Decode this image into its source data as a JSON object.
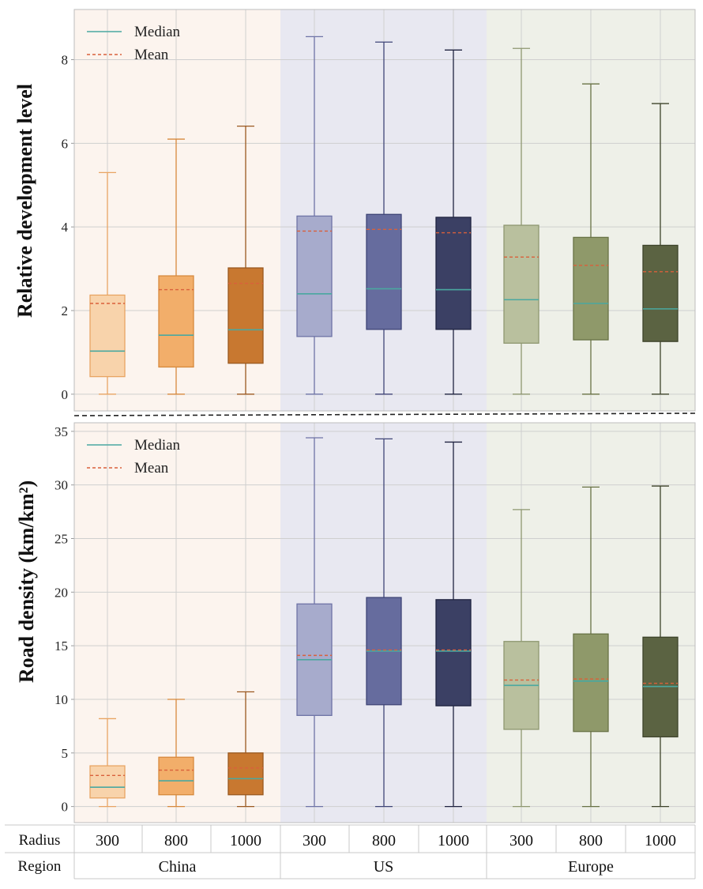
{
  "colors": {
    "median": "#4aa8a0",
    "mean": "#d9603b",
    "bg_china": "#fcf4ee",
    "bg_us": "#e8e8f1",
    "bg_europe": "#eef0e8",
    "grid": "#cfcfcf",
    "divider": "#222222"
  },
  "legend": {
    "median": "Median",
    "mean": "Mean"
  },
  "table": {
    "radius_label": "Radius",
    "region_label": "Region",
    "radii": [
      "300",
      "800",
      "1000",
      "300",
      "800",
      "1000",
      "300",
      "800",
      "1000"
    ],
    "regions": [
      "China",
      "US",
      "Europe"
    ]
  },
  "chart_data": [
    {
      "type": "box",
      "ylabel": "Relative development level",
      "ylim": [
        -0.4,
        9.2
      ],
      "yticks": [
        "0",
        "2",
        "4",
        "6",
        "8"
      ],
      "grid": true,
      "legend_position": "top-left",
      "categories": [
        "China 300",
        "China 800",
        "China 1000",
        "US 300",
        "US 800",
        "US 1000",
        "Europe 300",
        "Europe 800",
        "Europe 1000"
      ],
      "boxes": [
        {
          "min": 0,
          "q1": 0.42,
          "median": 1.03,
          "mean": 2.17,
          "q3": 2.37,
          "max": 5.3,
          "fill": "#f8d3ab",
          "stroke": "#e8a463"
        },
        {
          "min": 0,
          "q1": 0.65,
          "median": 1.41,
          "mean": 2.5,
          "q3": 2.83,
          "max": 6.1,
          "fill": "#f2ae6a",
          "stroke": "#d6893d"
        },
        {
          "min": 0,
          "q1": 0.74,
          "median": 1.54,
          "mean": 2.65,
          "q3": 3.02,
          "max": 6.41,
          "fill": "#c87830",
          "stroke": "#9a5920"
        },
        {
          "min": 0,
          "q1": 1.38,
          "median": 2.4,
          "mean": 3.9,
          "q3": 4.26,
          "max": 8.55,
          "fill": "#a7abcc",
          "stroke": "#6e73a6"
        },
        {
          "min": 0,
          "q1": 1.55,
          "median": 2.52,
          "mean": 3.94,
          "q3": 4.3,
          "max": 8.42,
          "fill": "#666c9e",
          "stroke": "#3f4577"
        },
        {
          "min": 0,
          "q1": 1.55,
          "median": 2.5,
          "mean": 3.86,
          "q3": 4.23,
          "max": 8.23,
          "fill": "#3b4064",
          "stroke": "#1f2340"
        },
        {
          "min": 0,
          "q1": 1.22,
          "median": 2.26,
          "mean": 3.28,
          "q3": 4.04,
          "max": 8.27,
          "fill": "#b9c09e",
          "stroke": "#8e9770"
        },
        {
          "min": 0,
          "q1": 1.3,
          "median": 2.17,
          "mean": 3.08,
          "q3": 3.75,
          "max": 7.42,
          "fill": "#8f996a",
          "stroke": "#687245"
        },
        {
          "min": 0,
          "q1": 1.26,
          "median": 2.04,
          "mean": 2.93,
          "q3": 3.56,
          "max": 6.95,
          "fill": "#5b6342",
          "stroke": "#3d432a"
        }
      ]
    },
    {
      "type": "box",
      "ylabel": "Road density (km/km²)",
      "ylim": [
        -1.5,
        35.8
      ],
      "yticks": [
        "0",
        "5",
        "10",
        "15",
        "20",
        "25",
        "30",
        "35"
      ],
      "grid": true,
      "legend_position": "top-left",
      "categories": [
        "China 300",
        "China 800",
        "China 1000",
        "US 300",
        "US 800",
        "US 1000",
        "Europe 300",
        "Europe 800",
        "Europe 1000"
      ],
      "boxes": [
        {
          "min": 0,
          "q1": 0.8,
          "median": 1.8,
          "mean": 2.9,
          "q3": 3.8,
          "max": 8.2,
          "fill": "#f8d3ab",
          "stroke": "#e8a463"
        },
        {
          "min": 0,
          "q1": 1.1,
          "median": 2.4,
          "mean": 3.4,
          "q3": 4.6,
          "max": 10.0,
          "fill": "#f2ae6a",
          "stroke": "#d6893d"
        },
        {
          "min": 0,
          "q1": 1.1,
          "median": 2.6,
          "mean": 3.6,
          "q3": 5.0,
          "max": 10.7,
          "fill": "#c87830",
          "stroke": "#9a5920"
        },
        {
          "min": 0,
          "q1": 8.5,
          "median": 13.7,
          "mean": 14.1,
          "q3": 18.9,
          "max": 34.4,
          "fill": "#a7abcc",
          "stroke": "#6e73a6"
        },
        {
          "min": 0,
          "q1": 9.5,
          "median": 14.5,
          "mean": 14.6,
          "q3": 19.5,
          "max": 34.3,
          "fill": "#666c9e",
          "stroke": "#3f4577"
        },
        {
          "min": 0,
          "q1": 9.4,
          "median": 14.5,
          "mean": 14.6,
          "q3": 19.3,
          "max": 34.0,
          "fill": "#3b4064",
          "stroke": "#1f2340"
        },
        {
          "min": 0,
          "q1": 7.2,
          "median": 11.3,
          "mean": 11.8,
          "q3": 15.4,
          "max": 27.7,
          "fill": "#b9c09e",
          "stroke": "#8e9770"
        },
        {
          "min": 0,
          "q1": 7.0,
          "median": 11.7,
          "mean": 11.9,
          "q3": 16.1,
          "max": 29.8,
          "fill": "#8f996a",
          "stroke": "#687245"
        },
        {
          "min": 0,
          "q1": 6.5,
          "median": 11.2,
          "mean": 11.5,
          "q3": 15.8,
          "max": 29.9,
          "fill": "#5b6342",
          "stroke": "#3d432a"
        }
      ]
    }
  ]
}
